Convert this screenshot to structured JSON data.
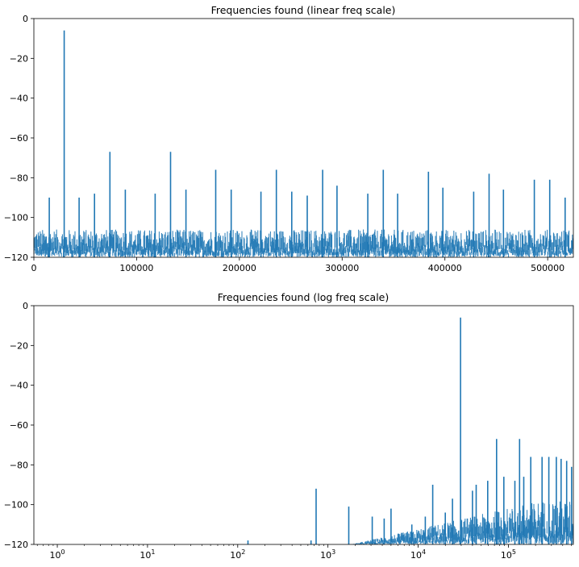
{
  "chart_data": [
    {
      "type": "line",
      "title": "Frequencies found (linear freq scale)",
      "xscale": "linear",
      "xlim": [
        0,
        525000
      ],
      "ylim": [
        -120,
        0
      ],
      "xticks": [
        {
          "value": 0,
          "label": "0"
        },
        {
          "value": 100000,
          "label": "100000"
        },
        {
          "value": 200000,
          "label": "200000"
        },
        {
          "value": 300000,
          "label": "300000"
        },
        {
          "value": 400000,
          "label": "400000"
        },
        {
          "value": 500000,
          "label": "500000"
        }
      ],
      "yticks": [
        {
          "value": 0,
          "label": "0"
        },
        {
          "value": -20,
          "label": "−20"
        },
        {
          "value": -40,
          "label": "−40"
        },
        {
          "value": -60,
          "label": "−60"
        },
        {
          "value": -80,
          "label": "−80"
        },
        {
          "value": -100,
          "label": "−100"
        },
        {
          "value": -120,
          "label": "−120"
        }
      ],
      "color": "#1f77b4",
      "grid": false,
      "peaks": [
        {
          "x": 29500,
          "y": -6
        },
        {
          "x": 74000,
          "y": -67
        },
        {
          "x": 133000,
          "y": -67
        },
        {
          "x": 177000,
          "y": -76
        },
        {
          "x": 236000,
          "y": -76
        },
        {
          "x": 281000,
          "y": -76
        },
        {
          "x": 340000,
          "y": -76
        },
        {
          "x": 384000,
          "y": -77
        },
        {
          "x": 443000,
          "y": -78
        },
        {
          "x": 487000,
          "y": -81
        },
        {
          "x": 502000,
          "y": -81
        },
        {
          "x": 15000,
          "y": -90
        },
        {
          "x": 44000,
          "y": -90
        },
        {
          "x": 59000,
          "y": -88
        },
        {
          "x": 89000,
          "y": -86
        },
        {
          "x": 118000,
          "y": -88
        },
        {
          "x": 148000,
          "y": -86
        },
        {
          "x": 192000,
          "y": -86
        },
        {
          "x": 221000,
          "y": -87
        },
        {
          "x": 251000,
          "y": -87
        },
        {
          "x": 266000,
          "y": -89
        },
        {
          "x": 295000,
          "y": -84
        },
        {
          "x": 325000,
          "y": -88
        },
        {
          "x": 354000,
          "y": -88
        },
        {
          "x": 398000,
          "y": -85
        },
        {
          "x": 428000,
          "y": -87
        },
        {
          "x": 457000,
          "y": -86
        },
        {
          "x": 517000,
          "y": -90
        }
      ],
      "noise_floor": [
        -120,
        -106
      ]
    },
    {
      "type": "line",
      "title": "Frequencies found (log freq scale)",
      "xscale": "log",
      "xlim": [
        0.55,
        525000
      ],
      "ylim": [
        -120,
        0
      ],
      "xticks": [
        {
          "value": 1,
          "base": "10",
          "exp": "0"
        },
        {
          "value": 10,
          "base": "10",
          "exp": "1"
        },
        {
          "value": 100,
          "base": "10",
          "exp": "2"
        },
        {
          "value": 1000,
          "base": "10",
          "exp": "3"
        },
        {
          "value": 10000,
          "base": "10",
          "exp": "4"
        },
        {
          "value": 100000,
          "base": "10",
          "exp": "5"
        }
      ],
      "yticks": [
        {
          "value": 0,
          "label": "0"
        },
        {
          "value": -20,
          "label": "−20"
        },
        {
          "value": -40,
          "label": "−40"
        },
        {
          "value": -60,
          "label": "−60"
        },
        {
          "value": -80,
          "label": "−80"
        },
        {
          "value": -100,
          "label": "−100"
        },
        {
          "value": -120,
          "label": "−120"
        }
      ],
      "color": "#1f77b4",
      "grid": false,
      "peaks": [
        {
          "x": 130,
          "y": -118
        },
        {
          "x": 650,
          "y": -118
        },
        {
          "x": 740,
          "y": -92
        },
        {
          "x": 1700,
          "y": -101
        },
        {
          "x": 3100,
          "y": -106
        },
        {
          "x": 4200,
          "y": -107
        },
        {
          "x": 5000,
          "y": -102
        },
        {
          "x": 8500,
          "y": -110
        },
        {
          "x": 12000,
          "y": -106
        },
        {
          "x": 14500,
          "y": -90
        },
        {
          "x": 20000,
          "y": -104
        },
        {
          "x": 24000,
          "y": -97
        },
        {
          "x": 29500,
          "y": -6
        },
        {
          "x": 40000,
          "y": -93
        },
        {
          "x": 44000,
          "y": -90
        },
        {
          "x": 59000,
          "y": -88
        },
        {
          "x": 74000,
          "y": -67
        },
        {
          "x": 89000,
          "y": -86
        },
        {
          "x": 118000,
          "y": -88
        },
        {
          "x": 133000,
          "y": -67
        },
        {
          "x": 148000,
          "y": -86
        },
        {
          "x": 177000,
          "y": -76
        },
        {
          "x": 236000,
          "y": -76
        },
        {
          "x": 281000,
          "y": -76
        },
        {
          "x": 340000,
          "y": -76
        },
        {
          "x": 384000,
          "y": -77
        },
        {
          "x": 443000,
          "y": -78
        },
        {
          "x": 502000,
          "y": -81
        }
      ],
      "noise_floor": [
        -120,
        -106
      ]
    }
  ]
}
